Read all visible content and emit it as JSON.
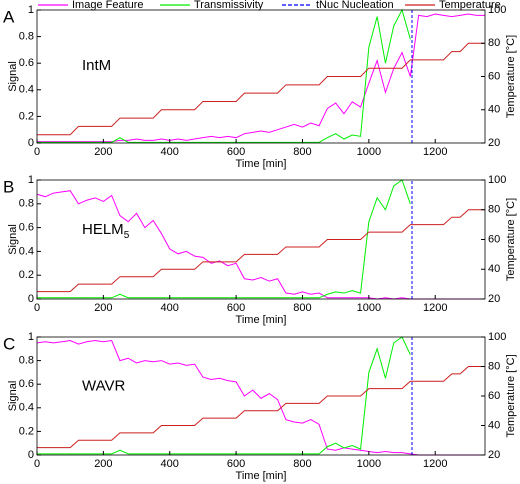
{
  "chart_data": [
    {
      "type": "line",
      "panel_label": "A",
      "annotation": "IntM",
      "xlabel": "Time [min]",
      "ylabel": "Signal",
      "y2label": "Temperature [°C]",
      "xlim": [
        0,
        1350
      ],
      "xticks": [
        0,
        200,
        400,
        600,
        800,
        1000,
        1200
      ],
      "ylim": [
        0,
        1
      ],
      "yticks": [
        0,
        0.2,
        0.4,
        0.6,
        0.8,
        1
      ],
      "y2lim": [
        20,
        100
      ],
      "y2ticks": [
        20,
        40,
        60,
        80,
        100
      ],
      "x": [
        0,
        25,
        50,
        75,
        100,
        125,
        150,
        175,
        200,
        225,
        250,
        275,
        300,
        325,
        350,
        375,
        400,
        425,
        450,
        475,
        500,
        525,
        550,
        575,
        600,
        625,
        650,
        675,
        700,
        725,
        750,
        775,
        800,
        825,
        850,
        875,
        900,
        925,
        950,
        975,
        1000,
        1025,
        1050,
        1075,
        1100,
        1125,
        1150,
        1175,
        1200,
        1225,
        1250,
        1275,
        1300,
        1325,
        1350
      ],
      "series": [
        {
          "name": "Image Feature",
          "color": "#ff00ff",
          "values": [
            0.01,
            0.01,
            0.01,
            0.01,
            0.01,
            0.01,
            0.01,
            0.01,
            0.01,
            0.01,
            0.02,
            0.02,
            0.03,
            0.02,
            0.02,
            0.03,
            0.02,
            0.03,
            0.02,
            0.03,
            0.04,
            0.05,
            0.04,
            0.05,
            0.04,
            0.07,
            0.08,
            0.09,
            0.08,
            0.1,
            0.12,
            0.14,
            0.12,
            0.15,
            0.13,
            0.26,
            0.3,
            0.22,
            0.31,
            0.27,
            0.45,
            0.62,
            0.38,
            0.56,
            0.68,
            0.5,
            0.96,
            0.95,
            0.97,
            0.96,
            0.95,
            0.96,
            0.97,
            0.96,
            0.96
          ]
        },
        {
          "name": "Transmissivity",
          "color": "#00ee00",
          "values": [
            0.005,
            0.005,
            0.005,
            0.005,
            0.005,
            0.005,
            0.005,
            0.005,
            0.005,
            0.005,
            0.04,
            0.005,
            0.005,
            0.005,
            0.005,
            0.005,
            0.005,
            0.005,
            0.005,
            0.005,
            0.005,
            0.005,
            0.005,
            0.005,
            0.005,
            0.005,
            0.005,
            0.005,
            0.005,
            0.005,
            0.005,
            0.005,
            0.005,
            0.005,
            0.005,
            0.04,
            0.07,
            0.03,
            0.06,
            0.05,
            0.72,
            0.95,
            0.6,
            0.88,
            1.0,
            0.78,
            null,
            null,
            null,
            null,
            null,
            null,
            null,
            null,
            null
          ]
        },
        {
          "name": "tNuc Nucleation",
          "color": "#0000ff",
          "x_values": [
            1130
          ]
        },
        {
          "name": "Temperature",
          "color": "#cc1f1f",
          "axis": "y2",
          "values": [
            25,
            25,
            25,
            25,
            25,
            30,
            30,
            30,
            30,
            30,
            35,
            35,
            35,
            35,
            35,
            40,
            40,
            40,
            40,
            40,
            45,
            45,
            45,
            45,
            45,
            50,
            50,
            50,
            50,
            50,
            55,
            55,
            55,
            55,
            55,
            60,
            60,
            60,
            60,
            60,
            65,
            65,
            65,
            65,
            65,
            70,
            70,
            70,
            70,
            70,
            75,
            75,
            80,
            80,
            80
          ]
        }
      ]
    },
    {
      "type": "line",
      "panel_label": "B",
      "annotation": "HELM",
      "annotation_sub": "5",
      "xlabel": "Time [min]",
      "ylabel": "Signal",
      "y2label": "Temperature [°C]",
      "xlim": [
        0,
        1350
      ],
      "xticks": [
        0,
        200,
        400,
        600,
        800,
        1000,
        1200
      ],
      "ylim": [
        0,
        1
      ],
      "yticks": [
        0,
        0.2,
        0.4,
        0.6,
        0.8,
        1
      ],
      "y2lim": [
        20,
        100
      ],
      "y2ticks": [
        20,
        40,
        60,
        80,
        100
      ],
      "x": [
        0,
        25,
        50,
        75,
        100,
        125,
        150,
        175,
        200,
        225,
        250,
        275,
        300,
        325,
        350,
        375,
        400,
        425,
        450,
        475,
        500,
        525,
        550,
        575,
        600,
        625,
        650,
        675,
        700,
        725,
        750,
        775,
        800,
        825,
        850,
        875,
        900,
        925,
        950,
        975,
        1000,
        1025,
        1050,
        1075,
        1100,
        1125,
        1150,
        1175,
        1200,
        1225,
        1250,
        1275,
        1300,
        1325,
        1350
      ],
      "series": [
        {
          "color": "#ff00ff",
          "values": [
            0.88,
            0.86,
            0.89,
            0.9,
            0.91,
            0.8,
            0.83,
            0.85,
            0.82,
            0.87,
            0.7,
            0.65,
            0.72,
            0.6,
            0.66,
            0.55,
            0.42,
            0.38,
            0.4,
            0.36,
            0.35,
            0.3,
            0.32,
            0.28,
            0.3,
            0.17,
            0.16,
            0.18,
            0.15,
            0.17,
            0.05,
            0.04,
            0.06,
            0.04,
            0.05,
            0.01,
            0.01,
            0.01,
            0.01,
            0.01,
            0.01,
            0,
            0.01,
            0,
            0.01,
            0,
            0,
            0,
            0,
            0,
            0,
            0,
            0,
            0,
            0
          ]
        },
        {
          "color": "#00ee00",
          "values": [
            0.01,
            0.01,
            0.01,
            0.01,
            0.01,
            0.01,
            0.01,
            0.01,
            0.01,
            0.01,
            0.04,
            0.01,
            0.01,
            0.01,
            0.01,
            0.01,
            0.01,
            0.01,
            0.01,
            0.01,
            0.01,
            0.01,
            0.01,
            0.01,
            0.01,
            0.01,
            0.01,
            0.01,
            0.01,
            0.01,
            0.01,
            0.01,
            0.01,
            0.01,
            0.01,
            0.04,
            0.06,
            0.05,
            0.07,
            0.05,
            0.65,
            0.85,
            0.75,
            0.95,
            1.0,
            0.8,
            null,
            null,
            null,
            null,
            null,
            null,
            null,
            null,
            null
          ]
        },
        {
          "color": "#0000ff",
          "x_values": [
            1130
          ]
        },
        {
          "color": "#cc1f1f",
          "axis": "y2",
          "values": [
            25,
            25,
            25,
            25,
            25,
            30,
            30,
            30,
            30,
            30,
            35,
            35,
            35,
            35,
            35,
            40,
            40,
            40,
            40,
            40,
            45,
            45,
            45,
            45,
            45,
            50,
            50,
            50,
            50,
            50,
            55,
            55,
            55,
            55,
            55,
            60,
            60,
            60,
            60,
            60,
            65,
            65,
            65,
            65,
            65,
            70,
            70,
            70,
            70,
            70,
            75,
            75,
            80,
            80,
            80
          ]
        }
      ]
    },
    {
      "type": "line",
      "panel_label": "C",
      "annotation": "WAVR",
      "xlabel": "Time [min]",
      "ylabel": "Signal",
      "y2label": "Temperature [°C]",
      "xlim": [
        0,
        1350
      ],
      "xticks": [
        0,
        200,
        400,
        600,
        800,
        1000,
        1200
      ],
      "ylim": [
        0,
        1
      ],
      "yticks": [
        0,
        0.2,
        0.4,
        0.6,
        0.8,
        1
      ],
      "y2lim": [
        20,
        100
      ],
      "y2ticks": [
        20,
        40,
        60,
        80,
        100
      ],
      "x": [
        0,
        25,
        50,
        75,
        100,
        125,
        150,
        175,
        200,
        225,
        250,
        275,
        300,
        325,
        350,
        375,
        400,
        425,
        450,
        475,
        500,
        525,
        550,
        575,
        600,
        625,
        650,
        675,
        700,
        725,
        750,
        775,
        800,
        825,
        850,
        875,
        900,
        925,
        950,
        975,
        1000,
        1025,
        1050,
        1075,
        1100,
        1125,
        1150,
        1175,
        1200,
        1225,
        1250,
        1275,
        1300,
        1325,
        1350
      ],
      "series": [
        {
          "color": "#ff00ff",
          "values": [
            0.95,
            0.96,
            0.95,
            0.96,
            0.97,
            0.94,
            0.96,
            0.97,
            0.96,
            0.97,
            0.8,
            0.82,
            0.78,
            0.8,
            0.79,
            0.8,
            0.77,
            0.78,
            0.76,
            0.77,
            0.66,
            0.64,
            0.65,
            0.63,
            0.62,
            0.5,
            0.55,
            0.48,
            0.52,
            0.47,
            0.3,
            0.28,
            0.27,
            0.3,
            0.26,
            0.05,
            0.04,
            0.06,
            0.05,
            0.04,
            0.03,
            0.02,
            0.03,
            0.02,
            0.02,
            0.01,
            0,
            0,
            0,
            0,
            0,
            0,
            0,
            0,
            0
          ]
        },
        {
          "color": "#00ee00",
          "values": [
            0.01,
            0.01,
            0.01,
            0.01,
            0.01,
            0.01,
            0.01,
            0.01,
            0.01,
            0.01,
            0.04,
            0.01,
            0.01,
            0.01,
            0.01,
            0.01,
            0.01,
            0.01,
            0.01,
            0.01,
            0.01,
            0.01,
            0.01,
            0.01,
            0.01,
            0.01,
            0.01,
            0.01,
            0.01,
            0.01,
            0.01,
            0.01,
            0.01,
            0.01,
            0.01,
            0.07,
            0.1,
            0.06,
            0.08,
            0.05,
            0.7,
            0.9,
            0.65,
            0.95,
            1.0,
            0.85,
            null,
            null,
            null,
            null,
            null,
            null,
            null,
            null,
            null
          ]
        },
        {
          "color": "#0000ff",
          "x_values": [
            1130
          ]
        },
        {
          "color": "#cc1f1f",
          "axis": "y2",
          "values": [
            25,
            25,
            25,
            25,
            25,
            30,
            30,
            30,
            30,
            30,
            35,
            35,
            35,
            35,
            35,
            40,
            40,
            40,
            40,
            40,
            45,
            45,
            45,
            45,
            45,
            50,
            50,
            50,
            50,
            50,
            55,
            55,
            55,
            55,
            55,
            60,
            60,
            60,
            60,
            60,
            65,
            65,
            65,
            65,
            65,
            70,
            70,
            70,
            70,
            70,
            75,
            75,
            80,
            80,
            80
          ]
        }
      ]
    }
  ]
}
